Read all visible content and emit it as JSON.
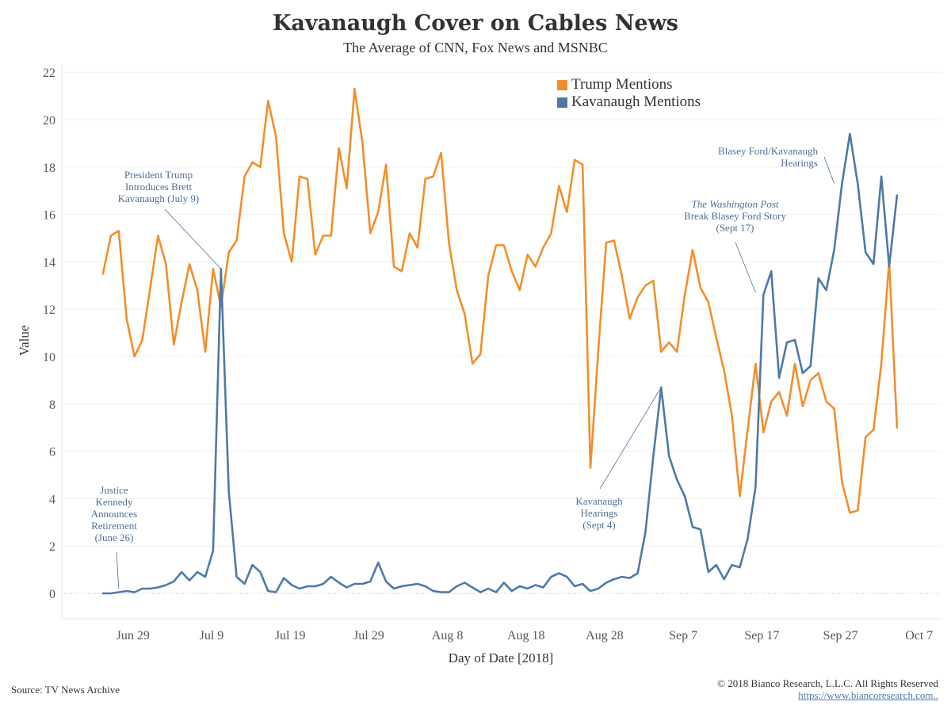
{
  "chart_data": {
    "type": "line",
    "title": "Kavanaugh Cover on Cables News",
    "subtitle": "The Average of CNN, Fox News and MSNBC",
    "xlabel": "Day of Date [2018]",
    "ylabel": "Value",
    "ylim": [
      -1,
      22
    ],
    "yticks": [
      0,
      2,
      4,
      6,
      8,
      10,
      12,
      14,
      16,
      18,
      20,
      22
    ],
    "x_start": "2018-06-26",
    "x_tick_labels": [
      "Jun 29",
      "Jul 9",
      "Jul 19",
      "Jul 29",
      "Aug 8",
      "Aug 18",
      "Aug 28",
      "Sep 7",
      "Sep 17",
      "Sep 27",
      "Oct 7"
    ],
    "legend_position": "top-right",
    "grid": true,
    "series": [
      {
        "name": "Trump Mentions",
        "color": "#f28e2b",
        "values": [
          13.5,
          15.1,
          15.3,
          11.6,
          10.0,
          10.7,
          12.9,
          15.1,
          13.9,
          10.5,
          12.3,
          13.9,
          12.8,
          10.2,
          13.7,
          12.1,
          14.4,
          14.9,
          17.6,
          18.2,
          18.0,
          20.8,
          19.3,
          15.2,
          14.0,
          17.6,
          17.5,
          14.3,
          15.1,
          15.1,
          18.8,
          17.1,
          21.3,
          19.0,
          15.2,
          16.1,
          18.1,
          13.8,
          13.6,
          15.2,
          14.6,
          17.5,
          17.6,
          18.6,
          14.8,
          12.8,
          11.8,
          9.7,
          10.1,
          13.4,
          14.7,
          14.7,
          13.6,
          12.8,
          14.3,
          13.8,
          14.6,
          15.2,
          17.2,
          16.1,
          18.3,
          18.1,
          5.3,
          10.3,
          14.8,
          14.9,
          13.4,
          11.6,
          12.5,
          13.0,
          13.2,
          10.2,
          10.6,
          10.2,
          12.6,
          14.5,
          12.9,
          12.3,
          10.8,
          9.4,
          7.5,
          4.1,
          6.9,
          9.7,
          6.8,
          8.1,
          8.5,
          7.5,
          9.7,
          7.9,
          9.0,
          9.3,
          8.1,
          7.8,
          4.7,
          3.4,
          3.5,
          6.6,
          6.9,
          9.7,
          14.0,
          7.0
        ]
      },
      {
        "name": "Kavanaugh Mentions",
        "color": "#4e79a7",
        "values": [
          0.0,
          0.0,
          0.05,
          0.1,
          0.05,
          0.2,
          0.2,
          0.25,
          0.35,
          0.5,
          0.9,
          0.55,
          0.9,
          0.7,
          1.8,
          13.7,
          4.3,
          0.7,
          0.4,
          1.2,
          0.9,
          0.1,
          0.05,
          0.65,
          0.35,
          0.2,
          0.3,
          0.3,
          0.4,
          0.7,
          0.45,
          0.25,
          0.4,
          0.4,
          0.5,
          1.3,
          0.5,
          0.2,
          0.3,
          0.35,
          0.4,
          0.3,
          0.1,
          0.05,
          0.05,
          0.3,
          0.45,
          0.25,
          0.05,
          0.2,
          0.05,
          0.45,
          0.1,
          0.3,
          0.2,
          0.35,
          0.25,
          0.7,
          0.85,
          0.7,
          0.3,
          0.4,
          0.1,
          0.2,
          0.45,
          0.6,
          0.7,
          0.65,
          0.85,
          2.6,
          5.8,
          8.7,
          5.8,
          4.8,
          4.1,
          2.8,
          2.7,
          0.9,
          1.2,
          0.6,
          1.2,
          1.1,
          2.3,
          4.5,
          12.6,
          13.6,
          9.1,
          10.6,
          10.7,
          9.3,
          9.6,
          13.3,
          12.8,
          14.5,
          17.3,
          19.4,
          17.3,
          14.4,
          13.9,
          17.6,
          13.8,
          16.8
        ]
      }
    ],
    "annotations": [
      {
        "lines": [
          "Justice",
          "Kennedy",
          "Announces",
          "Retirement",
          "(June 26)"
        ],
        "day": 2,
        "value": 0.2
      },
      {
        "lines": [
          "President Trump",
          "Introduces Brett",
          "Kavanaugh (July 9)"
        ],
        "day": 15,
        "value": 13.7
      },
      {
        "lines": [
          "Kavanaugh",
          "Hearings",
          "(Sept 4)"
        ],
        "day": 71,
        "value": 8.7
      },
      {
        "lines_italic": "The Washington Post",
        "lines": [
          "Break Blasey Ford Story",
          "(Sept 17)"
        ],
        "day": 83,
        "value": 12.7
      },
      {
        "lines": [
          "Blasey Ford/Kavanaugh",
          "Hearings"
        ],
        "day": 93,
        "value": 17.3
      }
    ]
  },
  "footer": {
    "source": "Source: TV News Archive",
    "copyright": "© 2018 Bianco Research, L.L.C. All Rights Reserved",
    "url": "https://www.biancoresearch.com.."
  }
}
